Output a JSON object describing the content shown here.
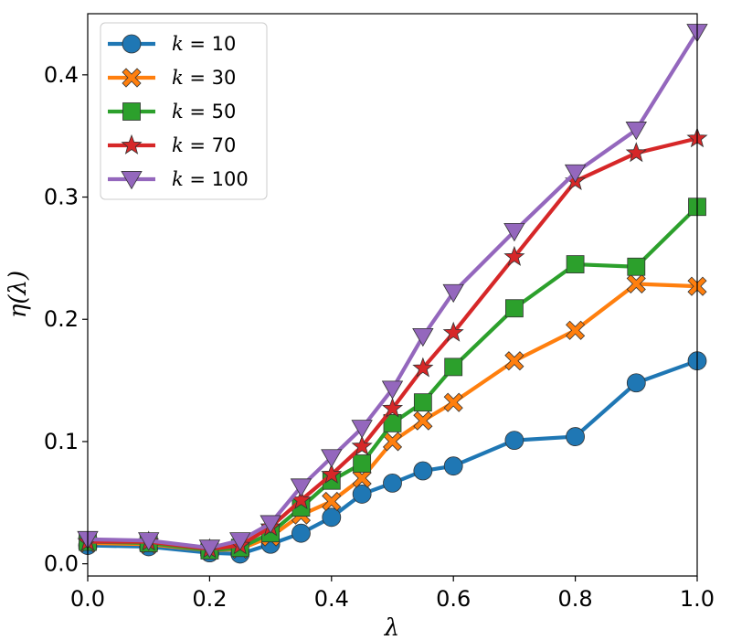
{
  "chart_data": {
    "type": "line",
    "title": "",
    "xlabel": "λ",
    "ylabel": "η(λ)",
    "xlim": [
      0.0,
      1.0
    ],
    "ylim": [
      -0.01,
      0.45
    ],
    "xticks": [
      0.0,
      0.2,
      0.4,
      0.6,
      0.8,
      1.0
    ],
    "xtick_labels": [
      "0.0",
      "0.2",
      "0.4",
      "0.6",
      "0.8",
      "1.0"
    ],
    "yticks": [
      0.0,
      0.1,
      0.2,
      0.3,
      0.4
    ],
    "ytick_labels": [
      "0.0",
      "0.1",
      "0.2",
      "0.3",
      "0.4"
    ],
    "grid": false,
    "legend_position": "top-left",
    "x": [
      0.0,
      0.1,
      0.2,
      0.25,
      0.3,
      0.35,
      0.4,
      0.45,
      0.5,
      0.55,
      0.6,
      0.7,
      0.8,
      0.9,
      1.0
    ],
    "series": [
      {
        "name": "k = 10",
        "label_var": "k",
        "label_value": "10",
        "color": "#1f77b4",
        "marker": "circle",
        "values": [
          0.015,
          0.014,
          0.009,
          0.008,
          0.016,
          0.025,
          0.038,
          0.057,
          0.066,
          0.076,
          0.08,
          0.101,
          0.104,
          0.148,
          0.166
        ]
      },
      {
        "name": "k = 30",
        "label_var": "k",
        "label_value": "30",
        "color": "#ff7f0e",
        "marker": "x-filled",
        "values": [
          0.017,
          0.016,
          0.011,
          0.012,
          0.022,
          0.04,
          0.051,
          0.07,
          0.1,
          0.117,
          0.132,
          0.166,
          0.191,
          0.229,
          0.227
        ]
      },
      {
        "name": "k = 50",
        "label_var": "k",
        "label_value": "50",
        "color": "#2ca02c",
        "marker": "square",
        "values": [
          0.018,
          0.017,
          0.011,
          0.013,
          0.025,
          0.046,
          0.068,
          0.082,
          0.115,
          0.132,
          0.161,
          0.209,
          0.245,
          0.243,
          0.292
        ]
      },
      {
        "name": "k = 70",
        "label_var": "k",
        "label_value": "70",
        "color": "#d62728",
        "marker": "star",
        "values": [
          0.018,
          0.018,
          0.012,
          0.015,
          0.03,
          0.052,
          0.073,
          0.096,
          0.127,
          0.16,
          0.189,
          0.251,
          0.313,
          0.336,
          0.348
        ]
      },
      {
        "name": "k = 100",
        "label_var": "k",
        "label_value": "100",
        "color": "#9467bd",
        "marker": "triangle-down",
        "values": [
          0.02,
          0.019,
          0.013,
          0.019,
          0.033,
          0.063,
          0.087,
          0.111,
          0.143,
          0.186,
          0.222,
          0.272,
          0.32,
          0.355,
          0.435
        ]
      }
    ]
  }
}
